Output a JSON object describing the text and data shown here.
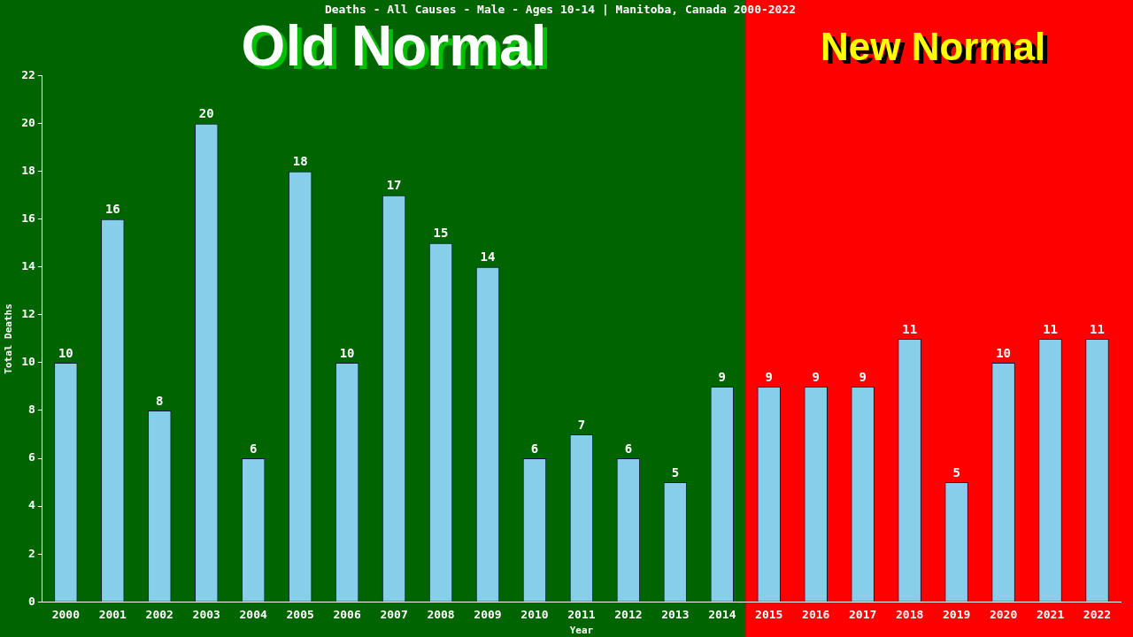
{
  "chart_data": {
    "type": "bar",
    "title": "Deaths - All Causes - Male - Ages 10-14 | Manitoba, Canada 2000-2022",
    "xlabel": "Year",
    "ylabel": "Total Deaths",
    "categories": [
      "2000",
      "2001",
      "2002",
      "2003",
      "2004",
      "2005",
      "2006",
      "2007",
      "2008",
      "2009",
      "2010",
      "2011",
      "2012",
      "2013",
      "2014",
      "2015",
      "2016",
      "2017",
      "2018",
      "2019",
      "2020",
      "2021",
      "2022"
    ],
    "series": [
      {
        "color": "#87ceeb",
        "values": [
          10,
          16,
          8,
          20,
          6,
          18,
          10,
          17,
          15,
          14,
          6,
          7,
          6,
          5,
          9,
          9,
          9,
          9,
          11,
          5,
          10,
          11,
          11
        ]
      }
    ],
    "ylim": [
      0,
      22
    ],
    "yticks": [
      0,
      2,
      4,
      6,
      8,
      10,
      12,
      14,
      16,
      18,
      20,
      22
    ],
    "grid": false,
    "legend": false,
    "data_labels": true,
    "bands": [
      {
        "axis": "x",
        "from": "2000",
        "to": "2014",
        "label": "Old Normal",
        "color": "#006400"
      },
      {
        "axis": "x",
        "from": "2015",
        "to": "2022",
        "label": "New Normal",
        "color": "#ff0000"
      }
    ]
  }
}
